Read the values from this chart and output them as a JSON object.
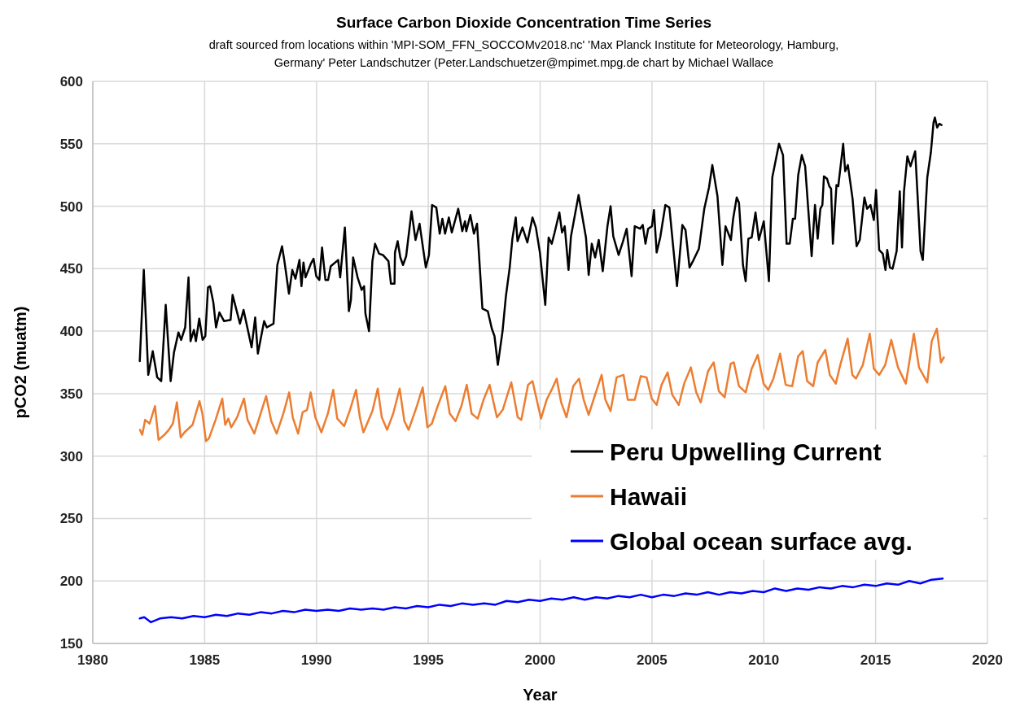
{
  "chart_data": {
    "type": "line",
    "title": "Surface Carbon Dioxide Concentration Time Series",
    "subtitle": "draft sourced from locations within 'MPI-SOM_FFN_SOCCOMv2018.nc'  'Max Planck Institute for Meteorology, Hamburg, Germany' Peter Landschutzer (Peter.Landschuetzer@mpimet.mpg.de   chart by Michael Wallace",
    "xlabel": "Year",
    "ylabel": "pCO2 (muatm)",
    "xlim": [
      1980,
      2020
    ],
    "xticks": [
      1980,
      1985,
      1990,
      1995,
      2000,
      2005,
      2010,
      2015,
      2020
    ],
    "ylim": [
      150,
      600
    ],
    "yticks": [
      150,
      200,
      250,
      300,
      350,
      400,
      450,
      500,
      550,
      600
    ],
    "grid": true,
    "legend": "right",
    "line_style": "solid",
    "marker": "none",
    "series": [
      {
        "name": "Peru Upwelling Current",
        "color": "#000000",
        "x": [
          1982.1,
          1982.28,
          1982.48,
          1982.68,
          1982.88,
          1983.06,
          1983.26,
          1983.48,
          1983.63,
          1983.83,
          1983.95,
          1984.13,
          1984.28,
          1984.37,
          1984.52,
          1984.61,
          1984.76,
          1984.91,
          1985.03,
          1985.15,
          1985.24,
          1985.39,
          1985.51,
          1985.66,
          1985.87,
          1986.16,
          1986.25,
          1986.58,
          1986.74,
          1987.1,
          1987.26,
          1987.38,
          1987.66,
          1987.78,
          1988.08,
          1988.25,
          1988.46,
          1988.56,
          1988.77,
          1988.92,
          1989.06,
          1989.24,
          1989.33,
          1989.42,
          1989.51,
          1989.75,
          1989.87,
          1989.99,
          1990.13,
          1990.25,
          1990.4,
          1990.52,
          1990.64,
          1990.97,
          1991.06,
          1991.27,
          1991.45,
          1991.54,
          1991.64,
          1991.84,
          1992.02,
          1992.13,
          1992.19,
          1992.35,
          1992.5,
          1992.62,
          1992.8,
          1992.97,
          1993.22,
          1993.33,
          1993.49,
          1993.51,
          1993.63,
          1993.75,
          1993.87,
          1994.01,
          1994.25,
          1994.43,
          1994.61,
          1994.73,
          1994.89,
          1995.03,
          1995.17,
          1995.36,
          1995.51,
          1995.63,
          1995.75,
          1995.92,
          1996.05,
          1996.34,
          1996.52,
          1996.64,
          1996.7,
          1996.88,
          1997.04,
          1997.18,
          1997.42,
          1997.66,
          1997.84,
          1997.96,
          1998.11,
          1998.32,
          1998.47,
          1998.64,
          1998.76,
          1998.91,
          1998.99,
          1999.21,
          1999.43,
          1999.66,
          1999.81,
          1999.99,
          2000.23,
          2000.38,
          2000.52,
          2000.65,
          2000.86,
          2000.98,
          2001.1,
          2001.27,
          2001.38,
          2001.72,
          2002.05,
          2002.17,
          2002.31,
          2002.46,
          2002.62,
          2002.8,
          2003.01,
          2003.15,
          2003.27,
          2003.51,
          2003.69,
          2003.87,
          2004.09,
          2004.23,
          2004.47,
          2004.59,
          2004.71,
          2004.83,
          2005.0,
          2005.09,
          2005.21,
          2005.37,
          2005.6,
          2005.78,
          2006.12,
          2006.36,
          2006.5,
          2006.68,
          2006.86,
          2007.1,
          2007.34,
          2007.55,
          2007.7,
          2007.93,
          2008.15,
          2008.29,
          2008.53,
          2008.63,
          2008.79,
          2008.89,
          2009.07,
          2009.19,
          2009.31,
          2009.46,
          2009.63,
          2009.78,
          2010.0,
          2010.23,
          2010.38,
          2010.68,
          2010.86,
          2011.02,
          2011.16,
          2011.3,
          2011.4,
          2011.54,
          2011.7,
          2011.85,
          2012.14,
          2012.29,
          2012.41,
          2012.53,
          2012.62,
          2012.69,
          2012.83,
          2012.93,
          2013.01,
          2013.09,
          2013.25,
          2013.33,
          2013.55,
          2013.64,
          2013.76,
          2013.97,
          2014.15,
          2014.29,
          2014.5,
          2014.62,
          2014.77,
          2014.92,
          2015.02,
          2015.16,
          2015.32,
          2015.44,
          2015.52,
          2015.64,
          2015.76,
          2015.94,
          2016.08,
          2016.18,
          2016.27,
          2016.42,
          2016.56,
          2016.77,
          2017.01,
          2017.11,
          2017.31,
          2017.47,
          2017.59,
          2017.65,
          2017.75,
          2017.85,
          2017.95
        ],
        "values": [
          376,
          449,
          365,
          384,
          363,
          360,
          421,
          360,
          383,
          399,
          393,
          403,
          443,
          392,
          401,
          392,
          410,
          393,
          396,
          435,
          436,
          423,
          403,
          415,
          408,
          409,
          429,
          406,
          417,
          387,
          411,
          382,
          408,
          403,
          406,
          453,
          468,
          457,
          430,
          449,
          442,
          457,
          436,
          455,
          443,
          454,
          458,
          444,
          441,
          467,
          441,
          441,
          452,
          457,
          443,
          483,
          416,
          425,
          459,
          443,
          433,
          436,
          414,
          400,
          456,
          470,
          462,
          461,
          456,
          438,
          438,
          463,
          472,
          459,
          453,
          460,
          496,
          473,
          486,
          471,
          451,
          461,
          501,
          499,
          478,
          490,
          478,
          491,
          479,
          498,
          480,
          488,
          480,
          493,
          478,
          486,
          418,
          416,
          402,
          396,
          373,
          400,
          428,
          451,
          474,
          491,
          472,
          483,
          471,
          491,
          483,
          463,
          421,
          475,
          470,
          479,
          495,
          479,
          484,
          449,
          476,
          509,
          475,
          445,
          470,
          459,
          473,
          448,
          484,
          500,
          476,
          461,
          471,
          482,
          444,
          484,
          482,
          485,
          470,
          482,
          484,
          497,
          463,
          475,
          501,
          499,
          436,
          485,
          481,
          451,
          457,
          466,
          498,
          515,
          533,
          508,
          453,
          484,
          473,
          490,
          507,
          503,
          453,
          440,
          474,
          475,
          495,
          473,
          488,
          440,
          523,
          550,
          541,
          470,
          470,
          490,
          490,
          525,
          541,
          532,
          460,
          501,
          474,
          498,
          501,
          524,
          522,
          516,
          514,
          470,
          517,
          516,
          550,
          528,
          533,
          506,
          468,
          473,
          507,
          498,
          501,
          489,
          513,
          465,
          462,
          449,
          465,
          451,
          450,
          464,
          512,
          467,
          512,
          540,
          532,
          544,
          464,
          457,
          523,
          543,
          567,
          571,
          563,
          566,
          565
        ]
      },
      {
        "name": "Hawaii",
        "color": "#ed7d31",
        "x": [
          1982.11,
          1982.21,
          1982.34,
          1982.54,
          1982.78,
          1982.94,
          1983.2,
          1983.4,
          1983.58,
          1983.76,
          1983.93,
          1984.1,
          1984.46,
          1984.77,
          1984.9,
          1985.06,
          1985.19,
          1985.49,
          1985.79,
          1985.92,
          1986.06,
          1986.19,
          1986.45,
          1986.76,
          1986.92,
          1987.22,
          1987.45,
          1987.75,
          1987.98,
          1988.22,
          1988.52,
          1988.78,
          1988.94,
          1989.18,
          1989.38,
          1989.58,
          1989.74,
          1989.95,
          1990.22,
          1990.51,
          1990.75,
          1990.93,
          1991.24,
          1991.5,
          1991.77,
          1991.94,
          1992.1,
          1992.5,
          1992.74,
          1992.92,
          1993.16,
          1993.43,
          1993.72,
          1993.93,
          1994.12,
          1994.49,
          1994.75,
          1994.96,
          1995.16,
          1995.42,
          1995.76,
          1995.96,
          1996.22,
          1996.48,
          1996.72,
          1996.94,
          1997.21,
          1997.47,
          1997.74,
          1998.07,
          1998.33,
          1998.71,
          1999.0,
          1999.16,
          1999.46,
          1999.66,
          2000.04,
          2000.29,
          2000.54,
          2000.74,
          2000.94,
          2001.18,
          2001.48,
          2001.74,
          2001.95,
          2002.17,
          2002.42,
          2002.75,
          2002.92,
          2003.15,
          2003.42,
          2003.73,
          2003.92,
          2004.23,
          2004.5,
          2004.76,
          2004.99,
          2005.21,
          2005.43,
          2005.7,
          2005.91,
          2006.2,
          2006.44,
          2006.74,
          2006.98,
          2007.18,
          2007.51,
          2007.76,
          2007.99,
          2008.25,
          2008.52,
          2008.66,
          2008.89,
          2009.19,
          2009.46,
          2009.73,
          2009.99,
          2010.2,
          2010.43,
          2010.73,
          2010.98,
          2011.27,
          2011.54,
          2011.74,
          2011.94,
          2012.21,
          2012.41,
          2012.75,
          2012.95,
          2013.22,
          2013.42,
          2013.75,
          2013.96,
          2014.12,
          2014.43,
          2014.74,
          2014.92,
          2015.16,
          2015.43,
          2015.7,
          2016.0,
          2016.35,
          2016.71,
          2016.94,
          2017.31,
          2017.51,
          2017.74,
          2017.92,
          2018.05
        ],
        "values": [
          321,
          317,
          329,
          326,
          340,
          313,
          317,
          321,
          326,
          343,
          315,
          319,
          325,
          344,
          334,
          312,
          314,
          329,
          346,
          325,
          330,
          323,
          331,
          346,
          329,
          318,
          331,
          348,
          328,
          318,
          334,
          351,
          331,
          318,
          335,
          337,
          351,
          331,
          319,
          334,
          353,
          330,
          324,
          337,
          353,
          331,
          319,
          336,
          354,
          331,
          321,
          334,
          354,
          328,
          321,
          340,
          355,
          323,
          326,
          340,
          356,
          334,
          328,
          340,
          357,
          334,
          330,
          345,
          357,
          331,
          337,
          359,
          331,
          329,
          357,
          360,
          330,
          345,
          354,
          362,
          343,
          331,
          356,
          362,
          345,
          333,
          347,
          365,
          345,
          336,
          363,
          365,
          345,
          345,
          364,
          363,
          346,
          341,
          357,
          367,
          349,
          341,
          358,
          371,
          351,
          343,
          368,
          375,
          352,
          347,
          374,
          375,
          356,
          351,
          370,
          381,
          358,
          353,
          362,
          382,
          357,
          356,
          380,
          384,
          360,
          356,
          375,
          385,
          365,
          358,
          373,
          394,
          365,
          362,
          373,
          398,
          370,
          365,
          373,
          393,
          371,
          358,
          398,
          371,
          359,
          392,
          402,
          375,
          379
        ]
      },
      {
        "name": "Global ocean surface avg.",
        "color": "#0000ff",
        "x": [
          1982.1,
          1982.3,
          1982.6,
          1983.0,
          1983.5,
          1984.0,
          1984.5,
          1985.0,
          1985.5,
          1986.0,
          1986.5,
          1987.0,
          1987.5,
          1988.0,
          1988.5,
          1989.0,
          1989.5,
          1990.0,
          1990.5,
          1991.0,
          1991.5,
          1992.0,
          1992.5,
          1993.0,
          1993.5,
          1994.0,
          1994.5,
          1995.0,
          1995.5,
          1996.0,
          1996.5,
          1997.0,
          1997.5,
          1998.0,
          1998.5,
          1999.0,
          1999.5,
          2000.0,
          2000.5,
          2001.0,
          2001.5,
          2002.0,
          2002.5,
          2003.0,
          2003.5,
          2004.0,
          2004.5,
          2005.0,
          2005.5,
          2006.0,
          2006.5,
          2007.0,
          2007.5,
          2008.0,
          2008.5,
          2009.0,
          2009.5,
          2010.0,
          2010.5,
          2011.0,
          2011.5,
          2012.0,
          2012.5,
          2013.0,
          2013.5,
          2014.0,
          2014.5,
          2015.0,
          2015.5,
          2016.0,
          2016.5,
          2017.0,
          2017.5,
          2018.0
        ],
        "values": [
          170,
          171,
          167,
          170,
          171,
          170,
          172,
          171,
          173,
          172,
          174,
          173,
          175,
          174,
          176,
          175,
          177,
          176,
          177,
          176,
          178,
          177,
          178,
          177,
          179,
          178,
          180,
          179,
          181,
          180,
          182,
          181,
          182,
          181,
          184,
          183,
          185,
          184,
          186,
          185,
          187,
          185,
          187,
          186,
          188,
          187,
          189,
          187,
          189,
          188,
          190,
          189,
          191,
          189,
          191,
          190,
          192,
          191,
          194,
          192,
          194,
          193,
          195,
          194,
          196,
          195,
          197,
          196,
          198,
          197,
          200,
          198,
          201,
          202
        ]
      }
    ]
  }
}
